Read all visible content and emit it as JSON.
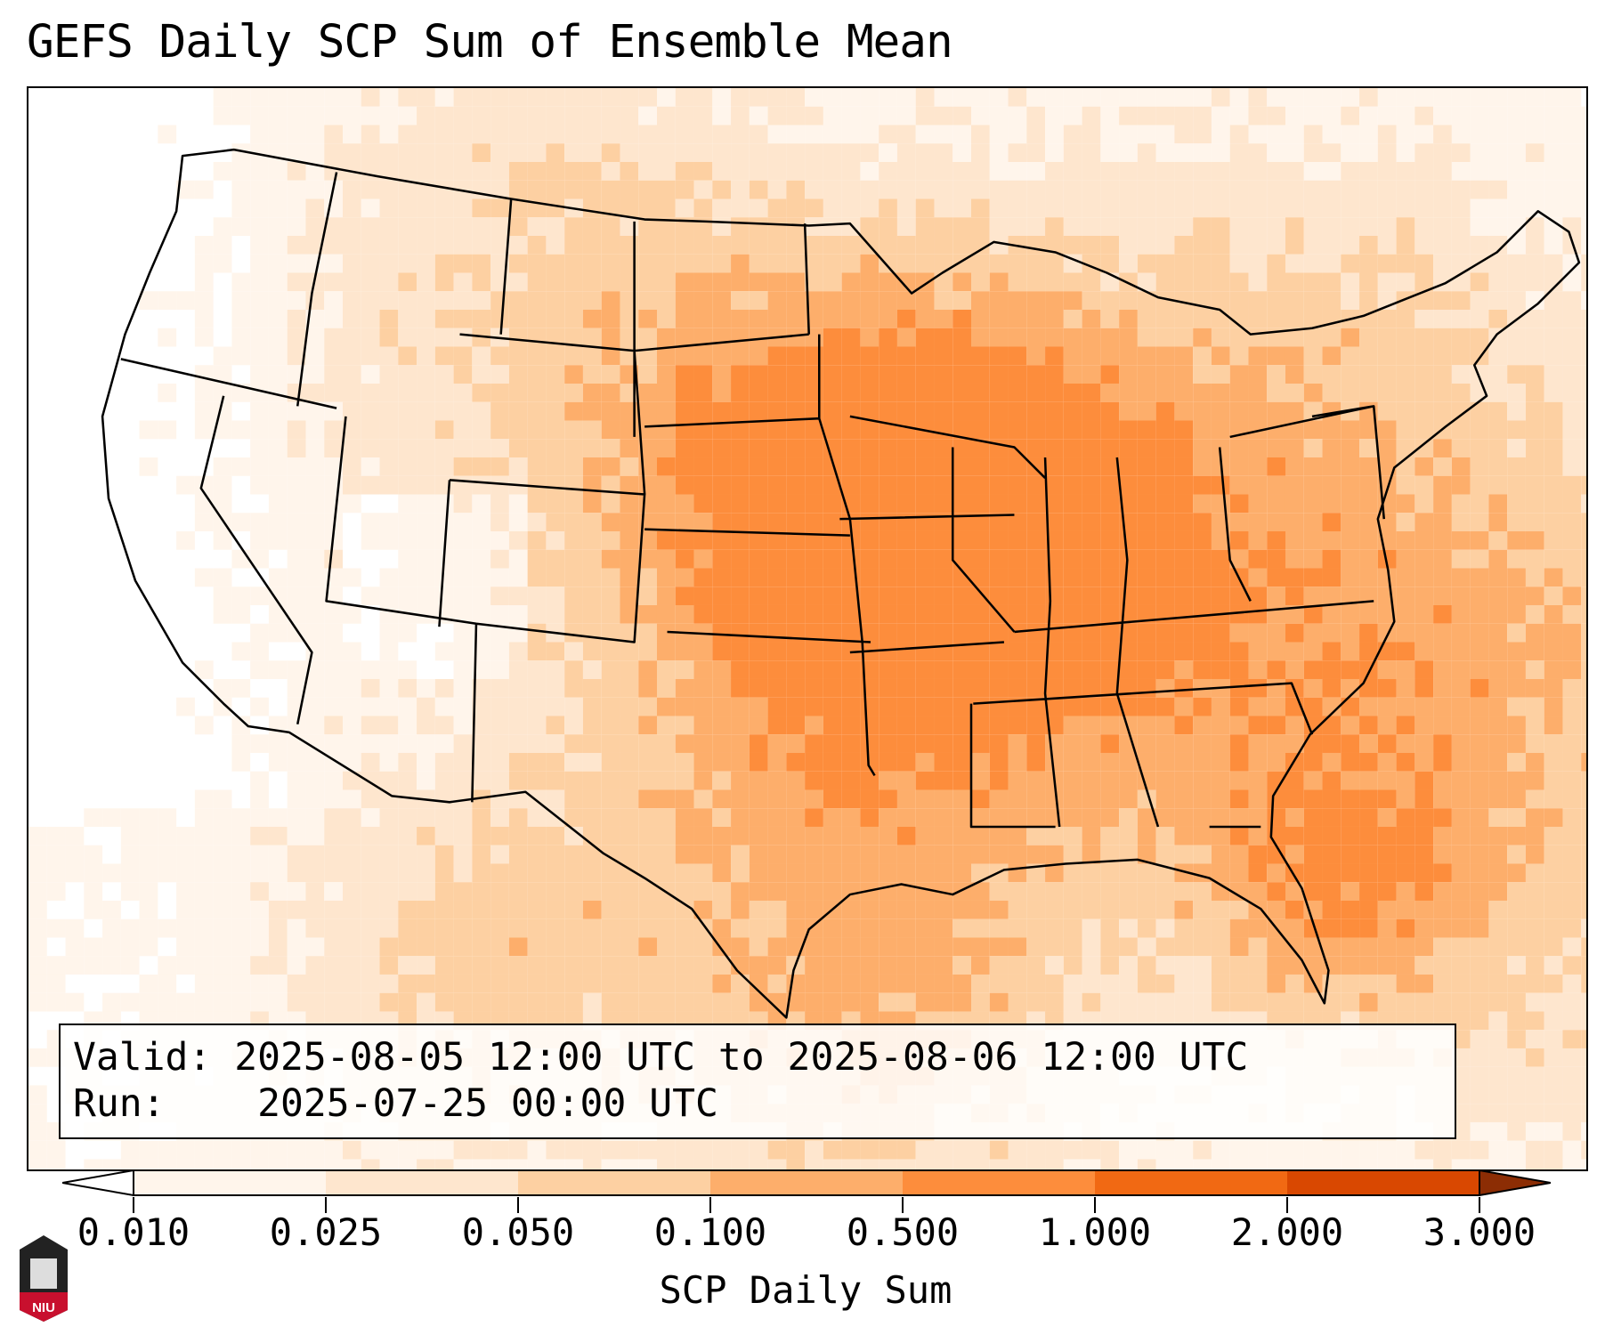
{
  "title": "GEFS Daily SCP Sum of Ensemble Mean",
  "info": {
    "valid_label": "Valid:",
    "valid_value": "2025-08-05 12:00 UTC to 2025-08-06 12:00 UTC",
    "run_label": "Run:",
    "run_value": "2025-07-25 00:00 UTC"
  },
  "logo_text": "NIU",
  "chart_data": {
    "type": "heatmap",
    "title": "GEFS Daily SCP Sum of Ensemble Mean",
    "colorbar": {
      "label": "SCP Daily Sum",
      "ticks": [
        "0.010",
        "0.025",
        "0.050",
        "0.100",
        "0.500",
        "1.000",
        "2.000",
        "3.000"
      ],
      "levels": [
        0.01,
        0.025,
        0.05,
        0.1,
        0.5,
        1.0,
        2.0,
        3.0
      ],
      "colors": [
        "#fff5eb",
        "#fee6ce",
        "#fdd0a2",
        "#fdae6b",
        "#fd8d3c",
        "#f16913",
        "#d94801"
      ],
      "under_color": "#ffffff",
      "over_color": "#8c2d04",
      "extend": "both"
    },
    "region": "CONUS",
    "grid": false
  }
}
